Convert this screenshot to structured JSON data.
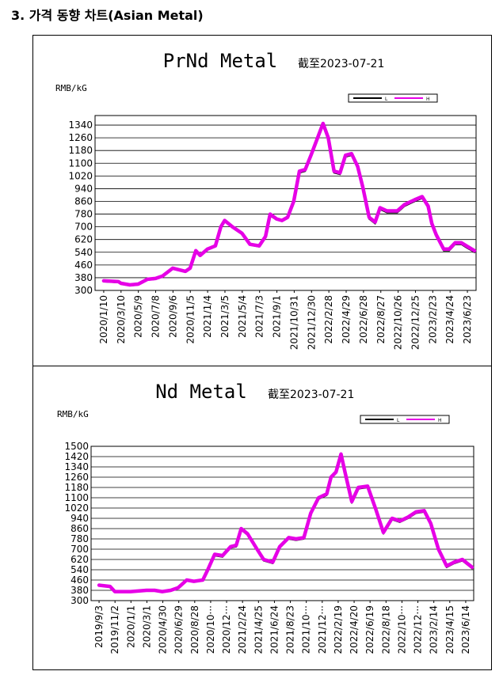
{
  "heading": "3. 가격 동향 차트(Asian Metal)",
  "colors": {
    "series": "#e600e6",
    "line": "#000000",
    "grid": "#000000"
  },
  "chart_data": [
    {
      "type": "line",
      "title": "PrNd Metal",
      "subtitle": "截至2023-07-21",
      "ylabel": "RMB/kG",
      "ylim": [
        300,
        1400
      ],
      "yticks": [
        300,
        380,
        460,
        540,
        620,
        700,
        780,
        860,
        940,
        1020,
        1100,
        1180,
        1260,
        1340
      ],
      "xticks": [
        "2020/1/10",
        "2020/3/10",
        "2020/5/9",
        "2020/7/8",
        "2020/9/6",
        "2020/11/5",
        "2021/1/4",
        "2021/3/5",
        "2021/5/4",
        "2021/7/3",
        "2021/9/1",
        "2021/10/31",
        "2021/12/30",
        "2022/2/28",
        "2022/4/29",
        "2022/6/28",
        "2022/8/27",
        "2022/10/26",
        "2022/12/25",
        "2023/2/23",
        "2023/4/24",
        "2023/6/23"
      ],
      "legend": {
        "position": "top-right",
        "entries": [
          "L",
          "H"
        ]
      },
      "grid": true,
      "series": [
        {
          "name": "H",
          "x": [
            "2020/1/10",
            "2020/3/1",
            "2020/3/10",
            "2020/4/10",
            "2020/5/9",
            "2020/6/10",
            "2020/7/8",
            "2020/8/1",
            "2020/9/6",
            "2020/10/20",
            "2020/11/5",
            "2020/11/25",
            "2020/12/10",
            "2021/1/4",
            "2021/2/1",
            "2021/2/20",
            "2021/3/5",
            "2021/4/1",
            "2021/5/4",
            "2021/6/1",
            "2021/7/3",
            "2021/7/25",
            "2021/8/10",
            "2021/9/1",
            "2021/9/20",
            "2021/10/10",
            "2021/10/31",
            "2021/11/20",
            "2021/12/10",
            "2021/12/30",
            "2022/1/20",
            "2022/2/10",
            "2022/2/28",
            "2022/3/20",
            "2022/4/10",
            "2022/4/29",
            "2022/5/20",
            "2022/6/10",
            "2022/6/28",
            "2022/7/20",
            "2022/8/10",
            "2022/8/27",
            "2022/9/20",
            "2022/10/26",
            "2022/11/20",
            "2022/12/25",
            "2023/1/20",
            "2023/2/10",
            "2023/2/23",
            "2023/3/10",
            "2023/4/5",
            "2023/4/24",
            "2023/5/15",
            "2023/6/5",
            "2023/6/23",
            "2023/7/21"
          ],
          "values": [
            360,
            355,
            345,
            335,
            340,
            370,
            375,
            390,
            440,
            420,
            440,
            550,
            520,
            560,
            580,
            700,
            740,
            700,
            660,
            590,
            580,
            640,
            780,
            750,
            740,
            760,
            860,
            1050,
            1060,
            1150,
            1250,
            1350,
            1260,
            1050,
            1040,
            1150,
            1160,
            1080,
            950,
            760,
            730,
            820,
            800,
            800,
            840,
            870,
            890,
            830,
            720,
            650,
            560,
            560,
            600,
            600,
            580,
            550
          ]
        },
        {
          "name": "L",
          "x": [
            "2020/1/10",
            "2020/3/1",
            "2020/3/10",
            "2020/4/10",
            "2020/5/9",
            "2020/6/10",
            "2020/7/8",
            "2020/8/1",
            "2020/9/6",
            "2020/10/20",
            "2020/11/5",
            "2020/11/25",
            "2020/12/10",
            "2021/1/4",
            "2021/2/1",
            "2021/2/20",
            "2021/3/5",
            "2021/4/1",
            "2021/5/4",
            "2021/6/1",
            "2021/7/3",
            "2021/7/25",
            "2021/8/10",
            "2021/9/1",
            "2021/9/20",
            "2021/10/10",
            "2021/10/31",
            "2021/11/20",
            "2021/12/10",
            "2021/12/30",
            "2022/1/20",
            "2022/2/10",
            "2022/2/28",
            "2022/3/20",
            "2022/4/10",
            "2022/4/29",
            "2022/5/20",
            "2022/6/10",
            "2022/6/28",
            "2022/7/20",
            "2022/8/10",
            "2022/8/27",
            "2022/9/20",
            "2022/10/26",
            "2022/11/20",
            "2022/12/25",
            "2023/1/20",
            "2023/2/10",
            "2023/2/23",
            "2023/3/10",
            "2023/4/5",
            "2023/4/24",
            "2023/5/15",
            "2023/6/5",
            "2023/6/23",
            "2023/7/21"
          ],
          "values": [
            355,
            350,
            340,
            330,
            335,
            365,
            370,
            385,
            435,
            415,
            435,
            540,
            515,
            555,
            575,
            695,
            735,
            695,
            655,
            585,
            575,
            635,
            770,
            745,
            735,
            755,
            850,
            1040,
            1050,
            1140,
            1240,
            1340,
            1250,
            1040,
            1030,
            1140,
            1150,
            1070,
            940,
            750,
            720,
            810,
            790,
            790,
            830,
            860,
            880,
            820,
            710,
            640,
            550,
            550,
            590,
            590,
            570,
            540
          ]
        }
      ]
    },
    {
      "type": "line",
      "title": "Nd Metal",
      "subtitle": "截至2023-07-21",
      "ylabel": "RMB/kG",
      "ylim": [
        300,
        1500
      ],
      "yticks": [
        300,
        380,
        460,
        540,
        620,
        700,
        780,
        860,
        940,
        1020,
        1100,
        1180,
        1260,
        1340,
        1420,
        1500
      ],
      "xticks": [
        "2019/9/3",
        "2019/11/2",
        "2020/1/1",
        "2020/3/1",
        "2020/4/30",
        "2020/6/29",
        "2020/8/28",
        "2020/10···",
        "2020/12···",
        "2021/2/24",
        "2021/4/25",
        "2021/6/24",
        "2021/8/23",
        "2021/10···",
        "2021/12···",
        "2022/2/19",
        "2022/4/20",
        "2022/6/19",
        "2022/8/18",
        "2022/10···",
        "2022/12···",
        "2023/2/14",
        "2023/4/15",
        "2023/6/14"
      ],
      "legend": {
        "position": "top-right",
        "entries": [
          "L",
          "H"
        ]
      },
      "grid": true,
      "series": [
        {
          "name": "H",
          "x": [
            "2019/9/3",
            "2019/10/15",
            "2019/11/2",
            "2020/1/1",
            "2020/3/1",
            "2020/4/1",
            "2020/4/30",
            "2020/6/1",
            "2020/6/29",
            "2020/8/1",
            "2020/8/28",
            "2020/10/1",
            "2020/10/20",
            "2020/11/15",
            "2020/12/15",
            "2021/1/15",
            "2021/2/5",
            "2021/2/24",
            "2021/3/20",
            "2021/4/25",
            "2021/5/20",
            "2021/6/24",
            "2021/7/20",
            "2021/8/23",
            "2021/9/20",
            "2021/10/20",
            "2021/11/15",
            "2021/12/15",
            "2022/1/15",
            "2022/1/31",
            "2022/2/19",
            "2022/3/10",
            "2022/3/25",
            "2022/4/20",
            "2022/5/15",
            "2022/6/19",
            "2022/7/20",
            "2022/8/18",
            "2022/9/20",
            "2022/10/20",
            "2022/11/20",
            "2022/12/20",
            "2023/1/20",
            "2023/2/14",
            "2023/3/15",
            "2023/4/15",
            "2023/5/15",
            "2023/6/14",
            "2023/7/21"
          ],
          "values": [
            420,
            410,
            370,
            370,
            380,
            380,
            370,
            380,
            400,
            460,
            450,
            460,
            540,
            660,
            650,
            720,
            730,
            860,
            820,
            700,
            620,
            600,
            720,
            790,
            780,
            790,
            980,
            1100,
            1130,
            1260,
            1300,
            1440,
            1300,
            1070,
            1180,
            1190,
            1010,
            830,
            940,
            920,
            950,
            990,
            1000,
            900,
            700,
            570,
            600,
            620,
            560
          ]
        },
        {
          "name": "L",
          "x": [
            "2019/9/3",
            "2019/10/15",
            "2019/11/2",
            "2020/1/1",
            "2020/3/1",
            "2020/4/1",
            "2020/4/30",
            "2020/6/1",
            "2020/6/29",
            "2020/8/1",
            "2020/8/28",
            "2020/10/1",
            "2020/10/20",
            "2020/11/15",
            "2020/12/15",
            "2021/1/15",
            "2021/2/5",
            "2021/2/24",
            "2021/3/20",
            "2021/4/25",
            "2021/5/20",
            "2021/6/24",
            "2021/7/20",
            "2021/8/23",
            "2021/9/20",
            "2021/10/20",
            "2021/11/15",
            "2021/12/15",
            "2022/1/15",
            "2022/1/31",
            "2022/2/19",
            "2022/3/10",
            "2022/3/25",
            "2022/4/20",
            "2022/5/15",
            "2022/6/19",
            "2022/7/20",
            "2022/8/18",
            "2022/9/20",
            "2022/10/20",
            "2022/11/20",
            "2022/12/20",
            "2023/1/20",
            "2023/2/14",
            "2023/3/15",
            "2023/4/15",
            "2023/5/15",
            "2023/6/14",
            "2023/7/21"
          ],
          "values": [
            415,
            405,
            365,
            365,
            375,
            375,
            365,
            375,
            395,
            455,
            445,
            455,
            535,
            650,
            640,
            710,
            720,
            850,
            810,
            690,
            610,
            590,
            710,
            780,
            770,
            780,
            970,
            1090,
            1120,
            1250,
            1290,
            1430,
            1290,
            1060,
            1170,
            1180,
            1000,
            820,
            930,
            910,
            940,
            980,
            990,
            890,
            690,
            560,
            590,
            610,
            550
          ]
        }
      ]
    }
  ]
}
